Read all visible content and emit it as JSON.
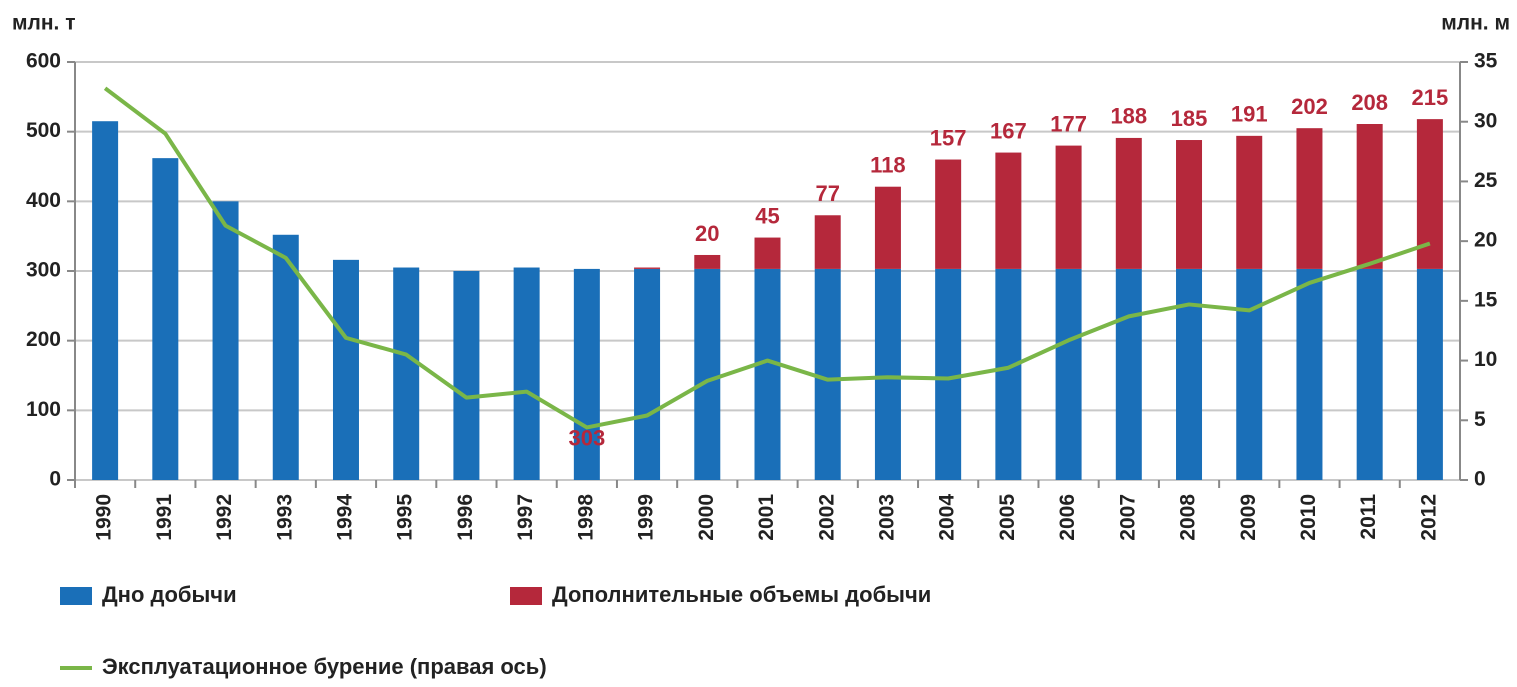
{
  "chart_data": {
    "type": "bar",
    "y_label": "млн. т",
    "y2_label": "млн. м",
    "categories": [
      "1990",
      "1991",
      "1992",
      "1993",
      "1994",
      "1995",
      "1996",
      "1997",
      "1998",
      "1999",
      "2000",
      "2001",
      "2002",
      "2003",
      "2004",
      "2005",
      "2006",
      "2007",
      "2008",
      "2009",
      "2010",
      "2011",
      "2012"
    ],
    "series": [
      {
        "name": "Дно добычи",
        "color": "#1a6fb8",
        "type": "bar",
        "values": [
          515,
          462,
          400,
          352,
          316,
          305,
          300,
          305,
          303,
          303,
          303,
          303,
          303,
          303,
          303,
          303,
          303,
          303,
          303,
          303,
          303,
          303,
          303
        ],
        "value_labels": [
          null,
          null,
          null,
          null,
          null,
          null,
          null,
          null,
          "303",
          null,
          null,
          null,
          null,
          null,
          null,
          null,
          null,
          null,
          null,
          null,
          null,
          null,
          null
        ]
      },
      {
        "name": "Дополнительные объемы добычи",
        "color": "#b5283b",
        "type": "bar",
        "stacked": true,
        "values": [
          null,
          null,
          null,
          null,
          null,
          null,
          null,
          null,
          null,
          2,
          20,
          45,
          77,
          118,
          157,
          167,
          177,
          188,
          185,
          191,
          202,
          208,
          215
        ],
        "value_labels": [
          null,
          null,
          null,
          null,
          null,
          null,
          null,
          null,
          null,
          null,
          "20",
          "45",
          "77",
          "118",
          "157",
          "167",
          "177",
          "188",
          "185",
          "191",
          "202",
          "208",
          "215"
        ]
      },
      {
        "name": "Эксплуатационное бурение (правая ось)",
        "color": "#7ab648",
        "type": "line",
        "axis": "y2",
        "values": [
          32.8,
          29,
          21.3,
          18.6,
          11.9,
          10.5,
          6.9,
          7.4,
          4.4,
          5.4,
          8.3,
          10,
          8.4,
          8.6,
          8.5,
          9.4,
          11.7,
          13.7,
          14.7,
          14.2,
          16.5,
          18.1,
          19.8
        ]
      }
    ],
    "ylim": [
      0,
      600
    ],
    "yticks": [
      0,
      100,
      200,
      300,
      400,
      500,
      600
    ],
    "y2lim": [
      0,
      35
    ],
    "y2ticks": [
      0,
      5,
      10,
      15,
      20,
      25,
      30,
      35
    ],
    "grid": true
  }
}
